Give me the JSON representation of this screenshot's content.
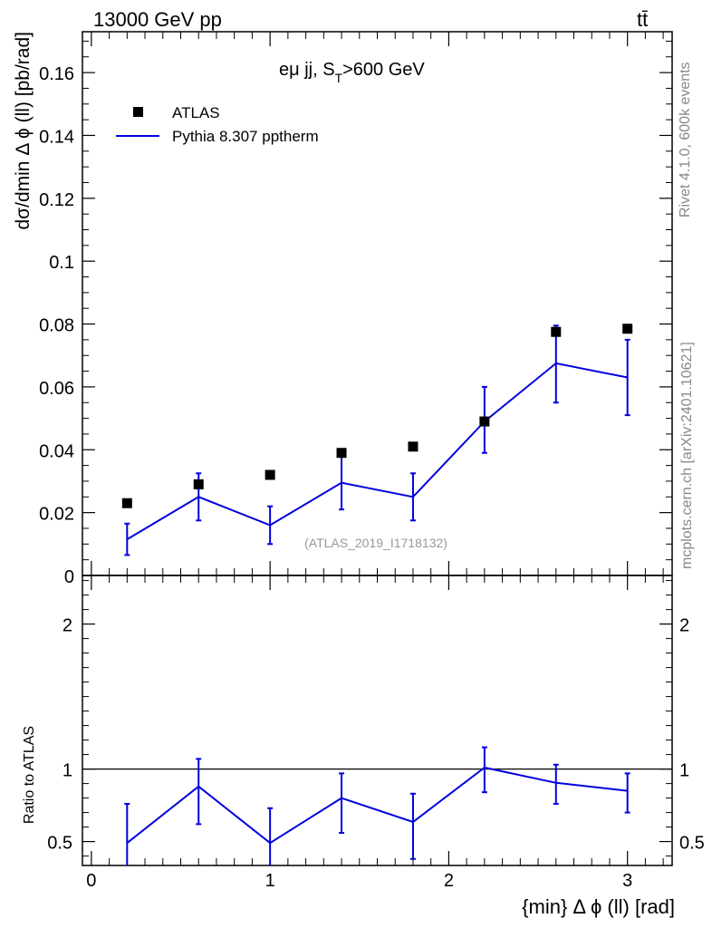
{
  "header": {
    "energy_label": "13000 GeV pp",
    "process_label": "tt̄"
  },
  "side_labels": {
    "rivet": "Rivet 4.1.0,  600k events",
    "source": "mcplots.cern.ch [arXiv:2401.10621]"
  },
  "watermark": "(ATLAS_2019_I1718132)",
  "colors": {
    "mc": "#0000dd",
    "data": "#000000",
    "watermark": "#999999",
    "side": "#888888"
  },
  "chart_data": {
    "type": "scatter",
    "title": "eμ jj, S_T>600 GeV",
    "title_main": "eμ jj, S",
    "title_sub": "T",
    "title_tail": ">600 GeV",
    "xlabel": "{min} Δ ϕ (ll) [rad]",
    "ylabel": "dσ/dmin Δ ϕ (ll) [pb/rad]",
    "ratio_ylabel": "Ratio to ATLAS",
    "xlim": [
      -0.05,
      3.25
    ],
    "ylim": [
      0,
      0.173
    ],
    "ratio_ylim": [
      0.335,
      2.335
    ],
    "x_ticks": [
      0,
      1,
      2,
      3
    ],
    "x_tick_labels": [
      "0",
      "1",
      "2",
      "3"
    ],
    "y_ticks": [
      0,
      0.02,
      0.04,
      0.06,
      0.08,
      0.1,
      0.12,
      0.14,
      0.16
    ],
    "y_tick_labels": [
      "0",
      "0.02",
      "0.04",
      "0.06",
      "0.08",
      "0.1",
      "0.12",
      "0.14",
      "0.16"
    ],
    "ratio_ticks": [
      0.5,
      1,
      2
    ],
    "ratio_tick_labels": [
      "0.5",
      "1",
      "2"
    ],
    "x": [
      0.2,
      0.6,
      1.0,
      1.4,
      1.8,
      2.2,
      2.6,
      3.0
    ],
    "series": [
      {
        "name": "ATLAS",
        "style": "markers",
        "values": [
          0.023,
          0.029,
          0.032,
          0.039,
          0.041,
          0.049,
          0.0775,
          0.0785
        ]
      },
      {
        "name": "Pythia 8.307 pptherm",
        "style": "line",
        "values": [
          0.0115,
          0.025,
          0.016,
          0.0295,
          0.025,
          0.049,
          0.0675,
          0.063
        ],
        "err_low": [
          0.0065,
          0.0175,
          0.01,
          0.021,
          0.0175,
          0.039,
          0.055,
          0.051
        ],
        "err_high": [
          0.0165,
          0.0325,
          0.022,
          0.038,
          0.0325,
          0.06,
          0.0795,
          0.075
        ]
      }
    ],
    "ratio": {
      "values": [
        0.49,
        0.88,
        0.49,
        0.8,
        0.635,
        1.01,
        0.905,
        0.85
      ],
      "err_low": [
        0.3,
        0.62,
        0.3,
        0.56,
        0.38,
        0.84,
        0.76,
        0.7
      ],
      "err_high": [
        0.76,
        1.07,
        0.73,
        0.97,
        0.83,
        1.15,
        1.03,
        0.97
      ]
    }
  }
}
